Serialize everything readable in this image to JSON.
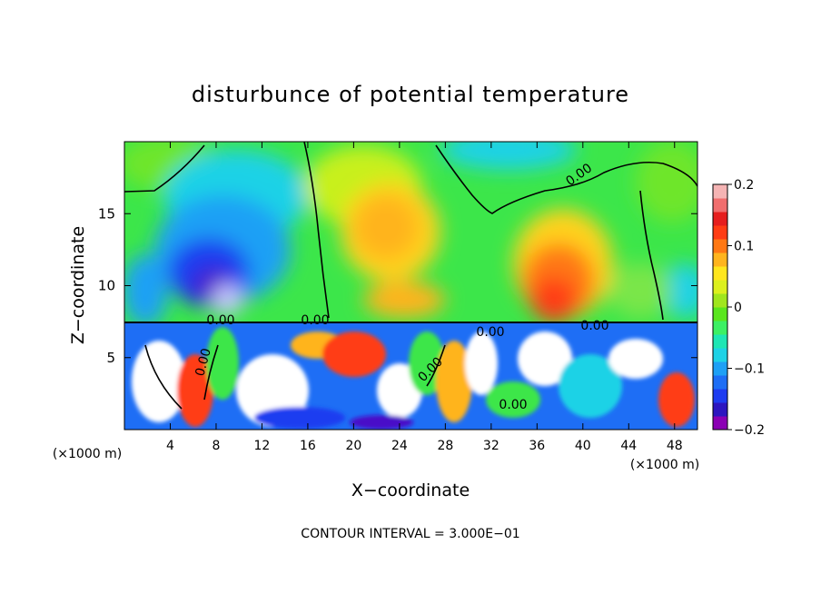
{
  "chart_data": {
    "type": "heatmap",
    "title": "disturbunce of potential temperature",
    "xlabel": "X−coordinate",
    "ylabel": "Z−coordinate",
    "x_unit_left": "(×1000 m)",
    "x_unit_right": "(×1000 m)",
    "xlim": [
      0,
      50
    ],
    "ylim": [
      0,
      20
    ],
    "x_ticks": [
      4,
      8,
      12,
      16,
      20,
      24,
      28,
      32,
      36,
      40,
      44,
      48
    ],
    "x_tick_labels": [
      "4",
      "8",
      "12",
      "16",
      "20",
      "24",
      "28",
      "32",
      "36",
      "40",
      "44",
      "48"
    ],
    "y_ticks": [
      5,
      10,
      15
    ],
    "y_tick_labels": [
      "5",
      "10",
      "15"
    ],
    "colorbar": {
      "range": [
        -0.2,
        0.2
      ],
      "ticks": [
        0.2,
        0.1,
        0,
        -0.1,
        -0.2
      ],
      "tick_labels": [
        "0.2",
        "0.1",
        "0",
        "−0.1",
        "−0.2"
      ],
      "colors": [
        "#8b00b4",
        "#2d16c0",
        "#1e3cf0",
        "#1e6ef5",
        "#1ea0f5",
        "#1ed2e6",
        "#1ee6b4",
        "#3cf064",
        "#5ae61e",
        "#a0e61e",
        "#dcf01e",
        "#ffe61e",
        "#ffb41e",
        "#ff7814",
        "#ff3c14",
        "#e61e1e",
        "#f06e6e",
        "#f5b4b4"
      ]
    },
    "contour_labels": [
      "0.00",
      "0.00",
      "0.00",
      "0.00",
      "0.00",
      "0.00",
      "0.00",
      "0.00"
    ],
    "footer": "CONTOUR INTERVAL = 3.000E−01"
  }
}
